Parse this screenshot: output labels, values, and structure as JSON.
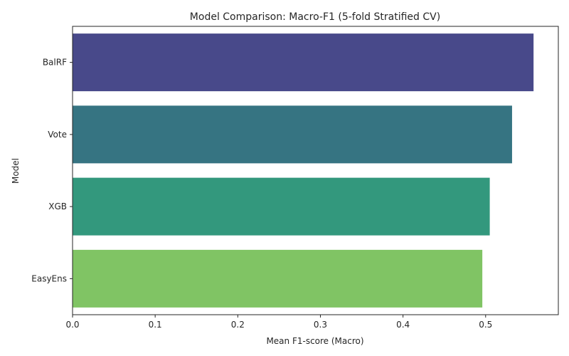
{
  "chart_data": {
    "type": "bar",
    "orientation": "horizontal",
    "title": "Model Comparison: Macro-F1 (5-fold Stratified CV)",
    "xlabel": "Mean F1-score (Macro)",
    "ylabel": "Model",
    "categories": [
      "BalRF",
      "Vote",
      "XGB",
      "EasyEns"
    ],
    "values": [
      0.558,
      0.532,
      0.505,
      0.496
    ],
    "colors": [
      "#48498a",
      "#367482",
      "#33987d",
      "#80c464"
    ],
    "xlim": [
      0,
      0.588
    ],
    "xticks": [
      "0.0",
      "0.1",
      "0.2",
      "0.3",
      "0.4",
      "0.5"
    ],
    "grid": false,
    "legend": "none"
  }
}
